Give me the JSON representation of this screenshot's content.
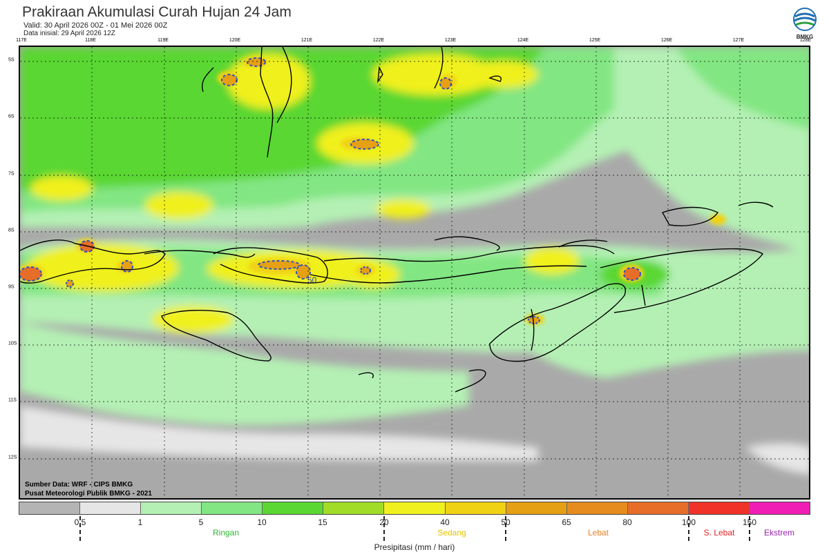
{
  "header": {
    "title": "Prakiraan Akumulasi Curah Hujan 24 Jam",
    "valid": "Valid: 30 April 2026 00Z - 01 Mei 2026 00Z",
    "initial": "Data inisial: 29 April 2026 12Z"
  },
  "logo": {
    "text": "BMKG"
  },
  "map": {
    "lon_labels": [
      "117E",
      "118E",
      "119E",
      "120E",
      "121E",
      "122E",
      "123E",
      "124E",
      "125E",
      "126E",
      "127E",
      "128E"
    ],
    "lat_labels": [
      "5S",
      "6S",
      "7S",
      "8S",
      "9S",
      "10S",
      "11S",
      "12S"
    ],
    "contour_label": "50",
    "credit_source": "Sumber Data: WRF - CIPS BMKG",
    "credit_org": "Pusat Meteorologi Publik BMKG - 2021"
  },
  "legend": {
    "colors": [
      "#b4b4b4",
      "#e6e6e6",
      "#b4f0b4",
      "#82e682",
      "#5ad732",
      "#a0dc28",
      "#f0f01e",
      "#f0d214",
      "#e6a014",
      "#e68c1e",
      "#e66e28",
      "#f03228",
      "#f01eb4"
    ],
    "ticks": [
      "0.5",
      "1",
      "5",
      "10",
      "15",
      "20",
      "40",
      "50",
      "65",
      "80",
      "100",
      "150"
    ],
    "categories": [
      {
        "label": "Ringan",
        "color": "#2eb82e"
      },
      {
        "label": "Sedang",
        "color": "#e6c200"
      },
      {
        "label": "Lebat",
        "color": "#e67e22"
      },
      {
        "label": "S. Lebat",
        "color": "#e62020"
      },
      {
        "label": "Ekstrem",
        "color": "#9b1fb0"
      }
    ],
    "unit": "Presipitasi (mm / hari)"
  }
}
